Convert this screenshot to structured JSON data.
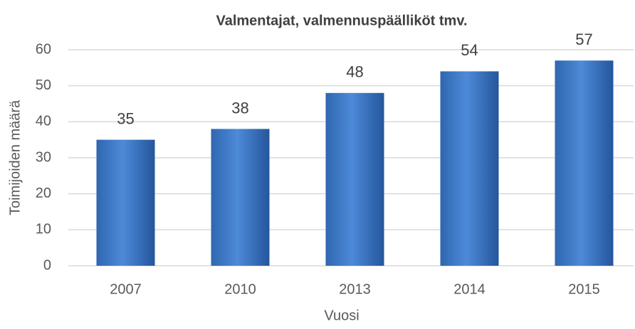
{
  "chart_data": {
    "type": "bar",
    "title": "Valmentajat, valmennuspäälliköt tmv.",
    "x_label": "Vuosi",
    "y_label": "Toimijoiden määrä",
    "categories": [
      "2007",
      "2010",
      "2013",
      "2014",
      "2015"
    ],
    "values": [
      35,
      38,
      48,
      54,
      57
    ],
    "color": "#3a78c9",
    "ylim": [
      0,
      60
    ],
    "yticks": [
      0,
      10,
      20,
      30,
      40,
      50,
      60
    ],
    "grid": true
  }
}
